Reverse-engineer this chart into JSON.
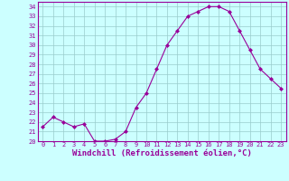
{
  "x": [
    0,
    1,
    2,
    3,
    4,
    5,
    6,
    7,
    8,
    9,
    10,
    11,
    12,
    13,
    14,
    15,
    16,
    17,
    18,
    19,
    20,
    21,
    22,
    23
  ],
  "y": [
    21.5,
    22.5,
    22.0,
    21.5,
    21.8,
    20.0,
    20.0,
    20.2,
    21.0,
    23.5,
    25.0,
    27.5,
    30.0,
    31.5,
    33.0,
    33.5,
    34.0,
    34.0,
    33.5,
    31.5,
    29.5,
    27.5,
    26.5,
    25.5
  ],
  "line_color": "#990099",
  "marker": "D",
  "marker_size": 2.0,
  "bg_color": "#ccffff",
  "grid_color": "#99cccc",
  "xlabel": "Windchill (Refroidissement éolien,°C)",
  "xlabel_color": "#990099",
  "tick_color": "#990099",
  "border_color": "#990099",
  "ylim": [
    20,
    34.5
  ],
  "xlim": [
    -0.5,
    23.5
  ],
  "yticks": [
    20,
    21,
    22,
    23,
    24,
    25,
    26,
    27,
    28,
    29,
    30,
    31,
    32,
    33,
    34
  ],
  "xticks": [
    0,
    1,
    2,
    3,
    4,
    5,
    6,
    7,
    8,
    9,
    10,
    11,
    12,
    13,
    14,
    15,
    16,
    17,
    18,
    19,
    20,
    21,
    22,
    23
  ],
  "tick_fontsize": 5.0,
  "xlabel_fontsize": 6.5,
  "linewidth": 0.8
}
